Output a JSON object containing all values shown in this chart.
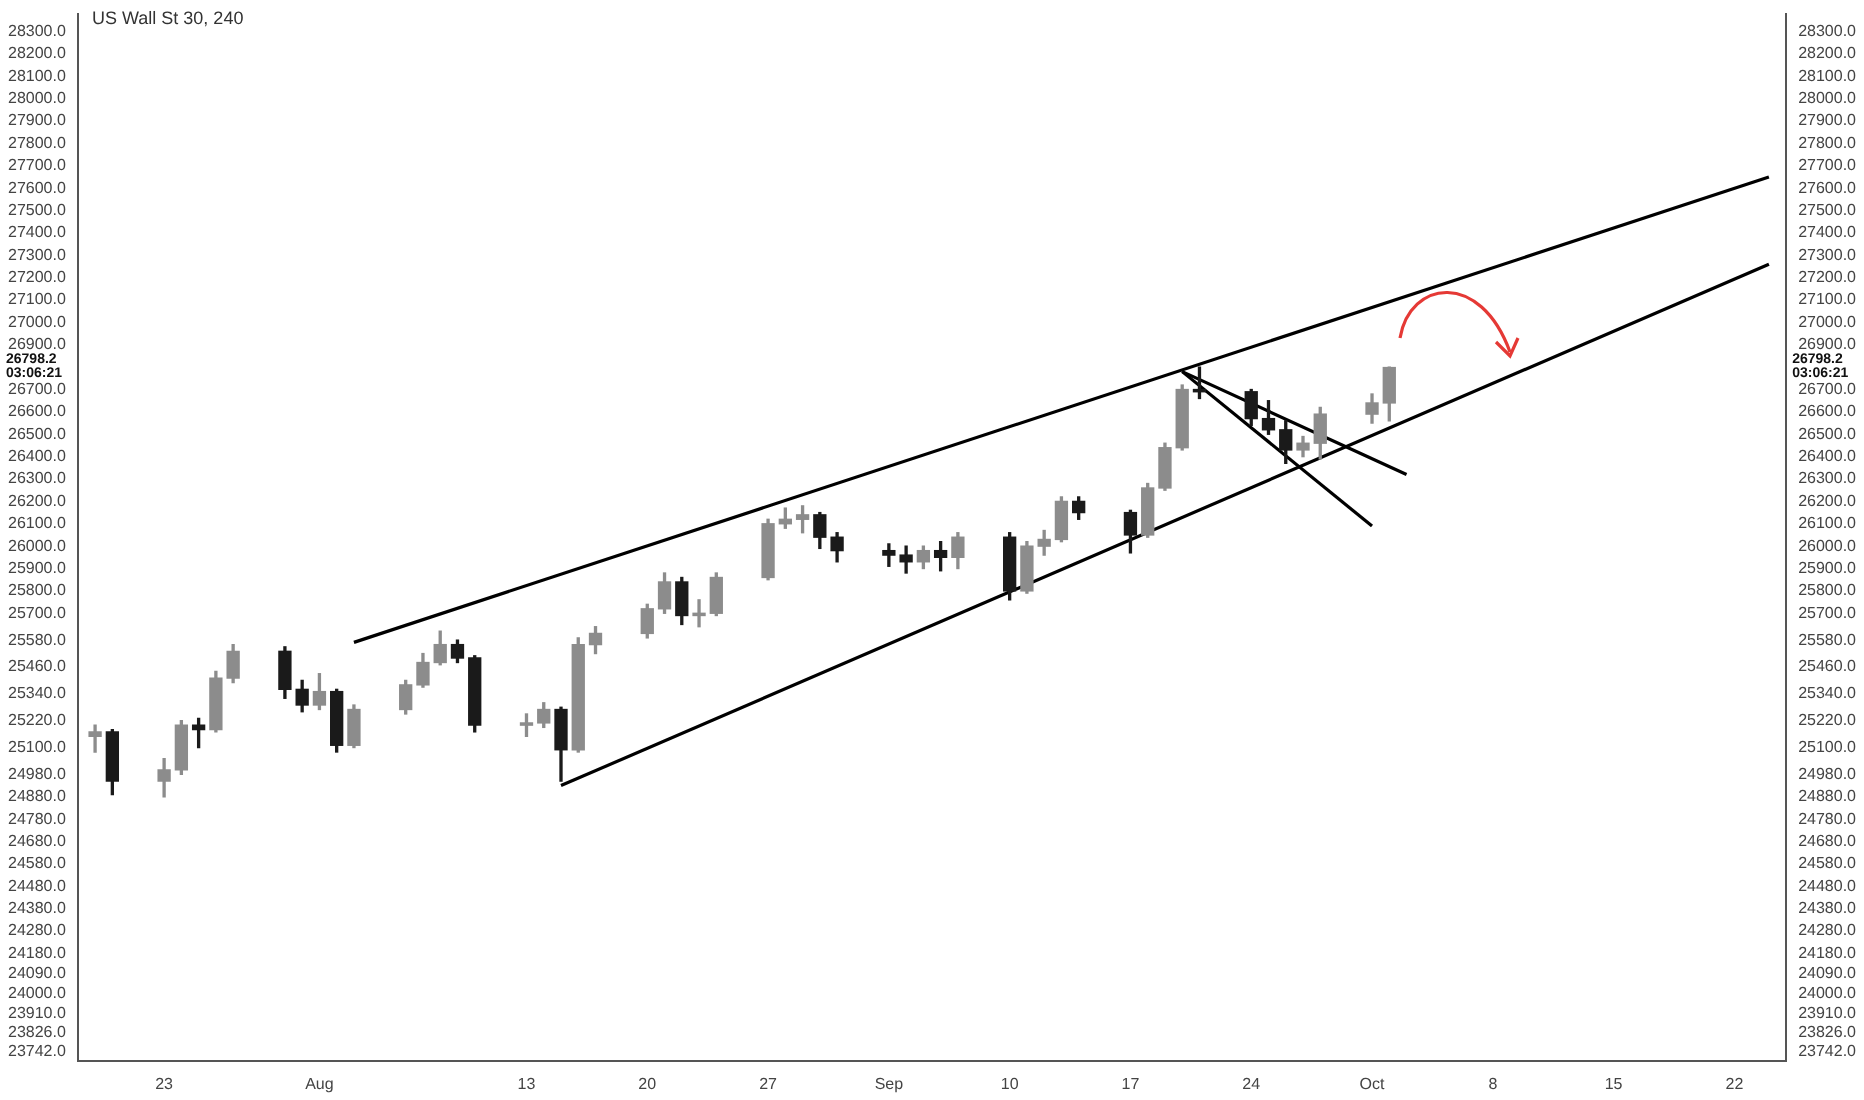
{
  "chart_data": {
    "type": "candlestick",
    "title": "US Wall St 30, 240",
    "x": [
      "--07-19",
      "--07-20",
      "--07-23",
      "--07-24",
      "--07-25",
      "--07-26",
      "--07-27",
      "--07-30",
      "--07-31",
      "--08-01",
      "--08-02",
      "--08-03",
      "--08-06",
      "--08-07",
      "--08-08",
      "--08-09",
      "--08-10",
      "--08-13",
      "--08-14",
      "--08-15",
      "--08-16",
      "--08-17",
      "--08-20",
      "--08-21",
      "--08-22",
      "--08-23",
      "--08-24",
      "--08-27",
      "--08-28",
      "--08-29",
      "--08-30",
      "--08-31",
      "--09-03",
      "--09-04",
      "--09-05",
      "--09-06",
      "--09-07",
      "--09-10",
      "--09-11",
      "--09-12",
      "--09-13",
      "--09-14",
      "--09-17",
      "--09-18",
      "--09-19",
      "--09-20",
      "--09-21",
      "--09-24",
      "--09-25",
      "--09-26",
      "--09-27",
      "--09-28",
      "--10-01",
      "--10-02"
    ],
    "ohlc": [
      [
        25150,
        25200,
        25080,
        25170
      ],
      [
        25170,
        25180,
        24890,
        24950
      ],
      [
        24950,
        25050,
        24880,
        25000
      ],
      [
        25000,
        25220,
        24980,
        25200
      ],
      [
        25200,
        25230,
        25100,
        25180
      ],
      [
        25180,
        25440,
        25170,
        25410
      ],
      [
        25410,
        25560,
        25390,
        25530
      ],
      [
        25530,
        25550,
        25320,
        25360
      ],
      [
        25360,
        25400,
        25260,
        25290
      ],
      [
        25290,
        25430,
        25270,
        25350
      ],
      [
        25350,
        25360,
        25080,
        25110
      ],
      [
        25110,
        25290,
        25100,
        25270
      ],
      [
        25270,
        25400,
        25250,
        25380
      ],
      [
        25380,
        25520,
        25370,
        25480
      ],
      [
        25480,
        25620,
        25470,
        25560
      ],
      [
        25560,
        25580,
        25480,
        25500
      ],
      [
        25500,
        25510,
        25170,
        25200
      ],
      [
        25200,
        25250,
        25150,
        25210
      ],
      [
        25210,
        25300,
        25190,
        25270
      ],
      [
        25270,
        25280,
        24950,
        25090
      ],
      [
        25090,
        25590,
        25080,
        25560
      ],
      [
        25560,
        25640,
        25520,
        25610
      ],
      [
        25610,
        25740,
        25590,
        25720
      ],
      [
        25720,
        25880,
        25700,
        25840
      ],
      [
        25840,
        25860,
        25650,
        25690
      ],
      [
        25690,
        25760,
        25640,
        25700
      ],
      [
        25700,
        25880,
        25690,
        25860
      ],
      [
        25860,
        26120,
        25850,
        26100
      ],
      [
        26100,
        26170,
        26080,
        26120
      ],
      [
        26120,
        26180,
        26060,
        26140
      ],
      [
        26140,
        26150,
        25990,
        26040
      ],
      [
        26040,
        26060,
        25930,
        25980
      ],
      [
        25980,
        26010,
        25910,
        25960
      ],
      [
        25960,
        26000,
        25880,
        25930
      ],
      [
        25930,
        26000,
        25900,
        25980
      ],
      [
        25980,
        26020,
        25890,
        25950
      ],
      [
        25950,
        26060,
        25900,
        26040
      ],
      [
        26040,
        26060,
        25760,
        25800
      ],
      [
        25800,
        26020,
        25790,
        26000
      ],
      [
        26000,
        26070,
        25960,
        26030
      ],
      [
        26030,
        26220,
        26020,
        26200
      ],
      [
        26200,
        26220,
        26120,
        26150
      ],
      [
        26150,
        26160,
        25970,
        26050
      ],
      [
        26050,
        26280,
        26040,
        26260
      ],
      [
        26260,
        26460,
        26250,
        26440
      ],
      [
        26440,
        26720,
        26430,
        26700
      ],
      [
        26700,
        26800,
        26660,
        26690
      ],
      [
        26690,
        26700,
        26540,
        26570
      ],
      [
        26570,
        26650,
        26500,
        26520
      ],
      [
        26520,
        26560,
        26370,
        26430
      ],
      [
        26430,
        26490,
        26400,
        26460
      ],
      [
        26460,
        26620,
        26390,
        26590
      ],
      [
        26590,
        26680,
        26550,
        26640
      ],
      [
        26640,
        26800,
        26560,
        26798.2
      ]
    ],
    "colors": [
      "#8c8c8c",
      "#1a1a1a",
      "#8c8c8c",
      "#8c8c8c",
      "#1a1a1a",
      "#8c8c8c",
      "#8c8c8c",
      "#1a1a1a",
      "#1a1a1a",
      "#8c8c8c",
      "#1a1a1a",
      "#8c8c8c",
      "#8c8c8c",
      "#8c8c8c",
      "#8c8c8c",
      "#1a1a1a",
      "#1a1a1a",
      "#8c8c8c",
      "#8c8c8c",
      "#1a1a1a",
      "#8c8c8c",
      "#8c8c8c",
      "#8c8c8c",
      "#8c8c8c",
      "#1a1a1a",
      "#8c8c8c",
      "#8c8c8c",
      "#8c8c8c",
      "#8c8c8c",
      "#8c8c8c",
      "#1a1a1a",
      "#1a1a1a",
      "#1a1a1a",
      "#1a1a1a",
      "#8c8c8c",
      "#1a1a1a",
      "#8c8c8c",
      "#1a1a1a",
      "#8c8c8c",
      "#8c8c8c",
      "#8c8c8c",
      "#1a1a1a",
      "#1a1a1a",
      "#8c8c8c",
      "#8c8c8c",
      "#8c8c8c",
      "#1a1a1a",
      "#1a1a1a",
      "#1a1a1a",
      "#1a1a1a",
      "#8c8c8c",
      "#8c8c8c",
      "#8c8c8c",
      "#8c8c8c"
    ],
    "series": [
      {
        "type": "line",
        "color": "#000000",
        "x": [
          "--08-03",
          "--10-24"
        ],
        "values": [
          25570,
          27650
        ]
      },
      {
        "type": "line",
        "color": "#000000",
        "x": [
          "--08-15",
          "--10-24"
        ],
        "values": [
          24930,
          27260
        ]
      },
      {
        "type": "line",
        "color": "#000000",
        "x": [
          "--09-20",
          "--10-03"
        ],
        "values": [
          26780,
          26320
        ]
      },
      {
        "type": "line",
        "color": "#000000",
        "x": [
          "--09-20",
          "--10-01"
        ],
        "values": [
          26780,
          26090
        ]
      }
    ],
    "xlim": [
      "--07-18",
      "--10-25"
    ],
    "xticks": [
      {
        "value": "--07-23",
        "label": "23"
      },
      {
        "value": "--08-01",
        "label": "Aug"
      },
      {
        "value": "--08-13",
        "label": "13"
      },
      {
        "value": "--08-20",
        "label": "20"
      },
      {
        "value": "--08-27",
        "label": "27"
      },
      {
        "value": "--09-03",
        "label": "Sep"
      },
      {
        "value": "--09-10",
        "label": "10"
      },
      {
        "value": "--09-17",
        "label": "17"
      },
      {
        "value": "--09-24",
        "label": "24"
      },
      {
        "value": "--10-01",
        "label": "Oct"
      },
      {
        "value": "--10-08",
        "label": "8"
      },
      {
        "value": "--10-15",
        "label": "15"
      },
      {
        "value": "--10-22",
        "label": "22"
      }
    ],
    "ylim": [
      23700,
      28380
    ],
    "yticks": [
      {
        "value": 28300,
        "label": "28300.0"
      },
      {
        "value": 28200,
        "label": "28200.0"
      },
      {
        "value": 28100,
        "label": "28100.0"
      },
      {
        "value": 28000,
        "label": "28000.0"
      },
      {
        "value": 27900,
        "label": "27900.0"
      },
      {
        "value": 27800,
        "label": "27800.0"
      },
      {
        "value": 27700,
        "label": "27700.0"
      },
      {
        "value": 27600,
        "label": "27600.0"
      },
      {
        "value": 27500,
        "label": "27500.0"
      },
      {
        "value": 27400,
        "label": "27400.0"
      },
      {
        "value": 27300,
        "label": "27300.0"
      },
      {
        "value": 27200,
        "label": "27200.0"
      },
      {
        "value": 27100,
        "label": "27100.0"
      },
      {
        "value": 27000,
        "label": "27000.0"
      },
      {
        "value": 26900,
        "label": "26900.0"
      },
      {
        "value": 26700,
        "label": "26700.0"
      },
      {
        "value": 26600,
        "label": "26600.0"
      },
      {
        "value": 26500,
        "label": "26500.0"
      },
      {
        "value": 26400,
        "label": "26400.0"
      },
      {
        "value": 26300,
        "label": "26300.0"
      },
      {
        "value": 26200,
        "label": "26200.0"
      },
      {
        "value": 26100,
        "label": "26100.0"
      },
      {
        "value": 26000,
        "label": "26000.0"
      },
      {
        "value": 25900,
        "label": "25900.0"
      },
      {
        "value": 25800,
        "label": "25800.0"
      },
      {
        "value": 25700,
        "label": "25700.0"
      },
      {
        "value": 25580,
        "label": "25580.0"
      },
      {
        "value": 25460,
        "label": "25460.0"
      },
      {
        "value": 25340,
        "label": "25340.0"
      },
      {
        "value": 25220,
        "label": "25220.0"
      },
      {
        "value": 25100,
        "label": "25100.0"
      },
      {
        "value": 24980,
        "label": "24980.0"
      },
      {
        "value": 24880,
        "label": "24880.0"
      },
      {
        "value": 24780,
        "label": "24780.0"
      },
      {
        "value": 24680,
        "label": "24680.0"
      },
      {
        "value": 24580,
        "label": "24580.0"
      },
      {
        "value": 24480,
        "label": "24480.0"
      },
      {
        "value": 24380,
        "label": "24380.0"
      },
      {
        "value": 24280,
        "label": "24280.0"
      },
      {
        "value": 24180,
        "label": "24180.0"
      },
      {
        "value": 24090,
        "label": "24090.0"
      },
      {
        "value": 24000,
        "label": "24000.0"
      },
      {
        "value": 23910,
        "label": "23910.0"
      },
      {
        "value": 23826,
        "label": "23826.0"
      },
      {
        "value": 23742,
        "label": "23742.0"
      }
    ],
    "y2lim": [
      23700,
      28380
    ],
    "y2ticks": [
      {
        "value": 28300,
        "label": "28300.0"
      },
      {
        "value": 28200,
        "label": "28200.0"
      },
      {
        "value": 28100,
        "label": "28100.0"
      },
      {
        "value": 28000,
        "label": "28000.0"
      },
      {
        "value": 27900,
        "label": "27900.0"
      },
      {
        "value": 27800,
        "label": "27800.0"
      },
      {
        "value": 27700,
        "label": "27700.0"
      },
      {
        "value": 27600,
        "label": "27600.0"
      },
      {
        "value": 27500,
        "label": "27500.0"
      },
      {
        "value": 27400,
        "label": "27400.0"
      },
      {
        "value": 27300,
        "label": "27300.0"
      },
      {
        "value": 27200,
        "label": "27200.0"
      },
      {
        "value": 27100,
        "label": "27100.0"
      },
      {
        "value": 27000,
        "label": "27000.0"
      },
      {
        "value": 26900,
        "label": "26900.0"
      },
      {
        "value": 26700,
        "label": "26700.0"
      },
      {
        "value": 26600,
        "label": "26600.0"
      },
      {
        "value": 26500,
        "label": "26500.0"
      },
      {
        "value": 26400,
        "label": "26400.0"
      },
      {
        "value": 26300,
        "label": "26300.0"
      },
      {
        "value": 26200,
        "label": "26200.0"
      },
      {
        "value": 26100,
        "label": "26100.0"
      },
      {
        "value": 26000,
        "label": "26000.0"
      },
      {
        "value": 25900,
        "label": "25900.0"
      },
      {
        "value": 25800,
        "label": "25800.0"
      },
      {
        "value": 25700,
        "label": "25700.0"
      },
      {
        "value": 25580,
        "label": "25580.0"
      },
      {
        "value": 25460,
        "label": "25460.0"
      },
      {
        "value": 25340,
        "label": "25340.0"
      },
      {
        "value": 25220,
        "label": "25220.0"
      },
      {
        "value": 25100,
        "label": "25100.0"
      },
      {
        "value": 24980,
        "label": "24980.0"
      },
      {
        "value": 24880,
        "label": "24880.0"
      },
      {
        "value": 24780,
        "label": "24780.0"
      },
      {
        "value": 24680,
        "label": "24680.0"
      },
      {
        "value": 24580,
        "label": "24580.0"
      },
      {
        "value": 24480,
        "label": "24480.0"
      },
      {
        "value": 24380,
        "label": "24380.0"
      },
      {
        "value": 24280,
        "label": "24280.0"
      },
      {
        "value": 24180,
        "label": "24180.0"
      },
      {
        "value": 24090,
        "label": "24090.0"
      },
      {
        "value": 24000,
        "label": "24000.0"
      },
      {
        "value": 23910,
        "label": "23910.0"
      },
      {
        "value": 23826,
        "label": "23826.0"
      },
      {
        "value": 23742,
        "label": "23742.0"
      }
    ],
    "annotations": [
      "26798.2",
      "03:06:21"
    ],
    "legend": false
  }
}
